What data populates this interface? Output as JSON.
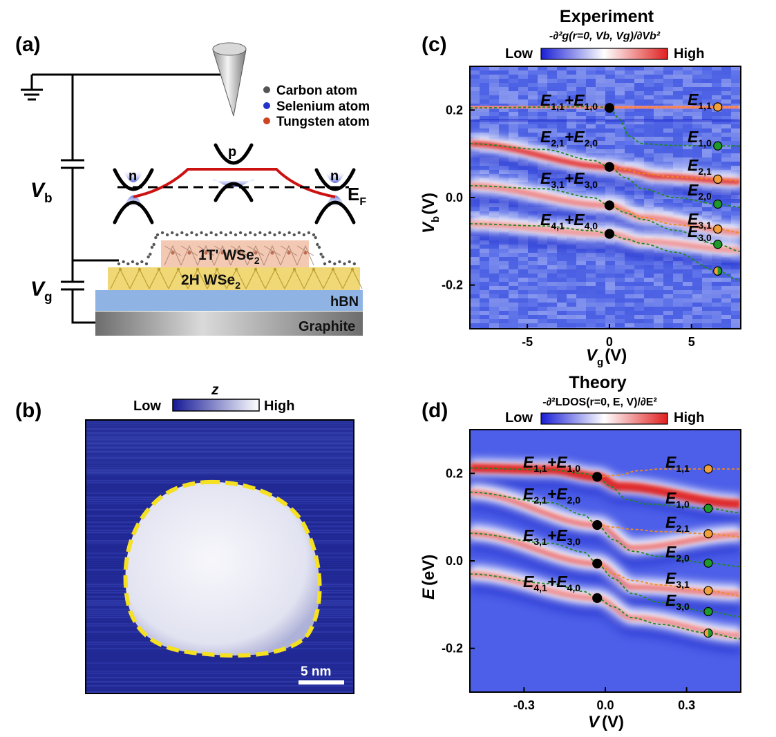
{
  "panels": {
    "a": {
      "label": "(a)"
    },
    "b": {
      "label": "(b)"
    },
    "c": {
      "label": "(c)"
    },
    "d": {
      "label": "(d)"
    }
  },
  "schematic": {
    "legend": [
      "Carbon atom",
      "Selenium atom",
      "Tungsten atom"
    ],
    "legend_colors": [
      "#555555",
      "#2233cc",
      "#cc4422"
    ],
    "vb_main": "V",
    "vb_sub": "b",
    "vg_main": "V",
    "vg_sub": "g",
    "n_left": "n",
    "p_center": "p",
    "n_right": "n",
    "ef_main": "E",
    "ef_sub": "F",
    "layer_1t_main": "1T' WSe",
    "layer_1t_sub": "2",
    "layer_2h_main": "2H WSe",
    "layer_2h_sub": "2",
    "layer_hbn": "hBN",
    "layer_graphite": "Graphite",
    "colors": {
      "band_bending": "#cc1111",
      "layer_1t": "#f3c9b3",
      "layer_2h": "#f0d877",
      "hbn": "#8fb4e3"
    }
  },
  "stm": {
    "colorbar_title": "z",
    "low": "Low",
    "high": "High",
    "scalebar": "5 nm",
    "outline_color": "#f5e021"
  },
  "experiment": {
    "title": "Experiment",
    "colorbar_title": "-∂²g(r=0, Vb, Vg)/∂Vb²",
    "low": "Low",
    "high": "High",
    "xlabel_main": "V",
    "xlabel_sub": "g",
    "xlabel_unit": "(V)",
    "ylabel_main": "V",
    "ylabel_sub": "b",
    "ylabel_unit": "(V)",
    "xticks": [
      "-5",
      "0",
      "5"
    ],
    "yticks": [
      "0.2",
      "0.0",
      "-0.2"
    ],
    "sum_labels": [
      [
        "E",
        "1,1",
        "+E",
        "1,0"
      ],
      [
        "E",
        "2,1",
        "+E",
        "2,0"
      ],
      [
        "E",
        "3,1",
        "+E",
        "3,0"
      ],
      [
        "E",
        "4,1",
        "+E",
        "4,0"
      ]
    ],
    "right_labels": [
      [
        "E",
        "1,1"
      ],
      [
        "E",
        "1,0"
      ],
      [
        "E",
        "2,1"
      ],
      [
        "E",
        "2,0"
      ],
      [
        "E",
        "3,1"
      ],
      [
        "E",
        "3,0"
      ]
    ]
  },
  "theory": {
    "title": "Theory",
    "colorbar_title": "-∂²LDOS(r=0, E, V)/∂E²",
    "low": "Low",
    "high": "High",
    "xlabel_main": "V",
    "xlabel_unit": "(V)",
    "ylabel_main": "E",
    "ylabel_unit": "(eV)",
    "xticks": [
      "-0.3",
      "0.0",
      "0.3"
    ],
    "yticks": [
      "0.2",
      "0.0",
      "-0.2"
    ],
    "sum_labels": [
      [
        "E",
        "1,1",
        "+E",
        "1,0"
      ],
      [
        "E",
        "2,1",
        "+E",
        "2,0"
      ],
      [
        "E",
        "3,1",
        "+E",
        "3,0"
      ],
      [
        "E",
        "4,1",
        "+E",
        "4,0"
      ]
    ],
    "right_labels": [
      [
        "E",
        "1,1"
      ],
      [
        "E",
        "1,0"
      ],
      [
        "E",
        "2,1"
      ],
      [
        "E",
        "2,0"
      ],
      [
        "E",
        "3,1"
      ],
      [
        "E",
        "3,0"
      ]
    ]
  },
  "chart_data": [
    {
      "type": "heatmap",
      "title": "Experiment",
      "xlabel": "Vg (V)",
      "ylabel": "Vb (V)",
      "xlim": [
        -8.5,
        8
      ],
      "ylim": [
        -0.3,
        0.3
      ],
      "xticks": [
        -5,
        0,
        5
      ],
      "yticks": [
        0.2,
        0.0,
        -0.2
      ],
      "colormap": [
        "#1a1fd6",
        "#ffffff",
        "#e02020"
      ],
      "series": [
        {
          "name": "E1,1+E1,0",
          "x": [
            0
          ],
          "y": [
            0.205
          ],
          "marker": "black"
        },
        {
          "name": "E2,1+E2,0",
          "x": [
            0
          ],
          "y": [
            0.07
          ],
          "marker": "black"
        },
        {
          "name": "E3,1+E3,0",
          "x": [
            0
          ],
          "y": [
            -0.018
          ],
          "marker": "black"
        },
        {
          "name": "E4,1+E4,0",
          "x": [
            0
          ],
          "y": [
            -0.083
          ],
          "marker": "black"
        },
        {
          "name": "E1,1",
          "x": [
            6.6
          ],
          "y": [
            0.207
          ],
          "marker": "orange"
        },
        {
          "name": "E1,0",
          "x": [
            6.6
          ],
          "y": [
            0.118
          ],
          "marker": "green"
        },
        {
          "name": "E2,1",
          "x": [
            6.6
          ],
          "y": [
            0.042
          ],
          "marker": "orange"
        },
        {
          "name": "E2,0",
          "x": [
            6.6
          ],
          "y": [
            -0.015
          ],
          "marker": "green"
        },
        {
          "name": "E3,1",
          "x": [
            6.6
          ],
          "y": [
            -0.072
          ],
          "marker": "orange"
        },
        {
          "name": "E3,0",
          "x": [
            6.6
          ],
          "y": [
            -0.107
          ],
          "marker": "green"
        },
        {
          "name": "half",
          "x": [
            6.6
          ],
          "y": [
            -0.168
          ],
          "marker": "half"
        }
      ],
      "green_curves": [
        {
          "x": [
            -8.5,
            -3,
            -1,
            0,
            0.6,
            1.2,
            2,
            4,
            6.6,
            8
          ],
          "y": [
            0.205,
            0.207,
            0.208,
            0.206,
            0.18,
            0.14,
            0.123,
            0.119,
            0.118,
            0.118
          ]
        },
        {
          "x": [
            -8.5,
            -4,
            -1,
            0,
            1,
            2,
            4,
            6.6,
            8
          ],
          "y": [
            0.123,
            0.11,
            0.085,
            0.07,
            0.045,
            0.02,
            0.0,
            -0.015,
            -0.022
          ]
        },
        {
          "x": [
            -8.5,
            -4,
            -1,
            0,
            1,
            2,
            4,
            6.6,
            8
          ],
          "y": [
            0.027,
            0.02,
            0.0,
            -0.018,
            -0.035,
            -0.05,
            -0.075,
            -0.107,
            -0.123
          ]
        },
        {
          "x": [
            -8.5,
            -4,
            -1,
            0,
            1,
            2,
            4,
            6.6,
            8
          ],
          "y": [
            -0.06,
            -0.065,
            -0.076,
            -0.083,
            -0.095,
            -0.105,
            -0.125,
            -0.168,
            -0.19
          ]
        }
      ],
      "orange_curves": [
        {
          "x": [
            0,
            2,
            4,
            6.6,
            8
          ],
          "y": [
            0.206,
            0.206,
            0.207,
            0.207,
            0.207
          ]
        },
        {
          "x": [
            0,
            1,
            2,
            4,
            6.6,
            8
          ],
          "y": [
            0.07,
            0.064,
            0.055,
            0.047,
            0.042,
            0.038
          ]
        },
        {
          "x": [
            0,
            1,
            2,
            4,
            6.6,
            8
          ],
          "y": [
            -0.018,
            -0.03,
            -0.045,
            -0.062,
            -0.072,
            -0.08
          ]
        }
      ],
      "bands": [
        {
          "x": [
            -8.5,
            -2,
            0,
            2,
            8
          ],
          "y": [
            0.207,
            0.208,
            0.206,
            0.206,
            0.205
          ],
          "intensity": 0.55
        },
        {
          "x": [
            -8.5,
            0,
            1,
            3,
            8
          ],
          "y": [
            0.123,
            0.07,
            0.062,
            0.048,
            0.036
          ],
          "intensity": 0.9
        },
        {
          "x": [
            -8.5,
            0,
            2,
            8
          ],
          "y": [
            0.027,
            -0.018,
            -0.045,
            -0.08
          ],
          "intensity": 0.4
        },
        {
          "x": [
            -8.5,
            0,
            2,
            8
          ],
          "y": [
            -0.06,
            -0.083,
            -0.1,
            -0.12
          ],
          "intensity": 0.3
        }
      ]
    },
    {
      "type": "heatmap",
      "title": "Theory",
      "xlabel": "V (V)",
      "ylabel": "E (eV)",
      "xlim": [
        -0.5,
        0.5
      ],
      "ylim": [
        -0.3,
        0.3
      ],
      "xticks": [
        -0.3,
        0.0,
        0.3
      ],
      "yticks": [
        0.2,
        0.0,
        -0.2
      ],
      "colormap": [
        "#1a1fd6",
        "#ffffff",
        "#e02020"
      ],
      "series": [
        {
          "name": "E1,1+E1,0",
          "x": [
            -0.03
          ],
          "y": [
            0.192
          ],
          "marker": "black"
        },
        {
          "name": "E2,1+E2,0",
          "x": [
            -0.03
          ],
          "y": [
            0.082
          ],
          "marker": "black"
        },
        {
          "name": "E3,1+E3,0",
          "x": [
            -0.03
          ],
          "y": [
            -0.006
          ],
          "marker": "black"
        },
        {
          "name": "E4,1+E4,0",
          "x": [
            -0.03
          ],
          "y": [
            -0.085
          ],
          "marker": "black"
        },
        {
          "name": "E1,1",
          "x": [
            0.38
          ],
          "y": [
            0.21
          ],
          "marker": "orange"
        },
        {
          "name": "E1,0",
          "x": [
            0.38
          ],
          "y": [
            0.12
          ],
          "marker": "green"
        },
        {
          "name": "E2,1",
          "x": [
            0.38
          ],
          "y": [
            0.062
          ],
          "marker": "orange"
        },
        {
          "name": "E2,0",
          "x": [
            0.38
          ],
          "y": [
            -0.005
          ],
          "marker": "green"
        },
        {
          "name": "E3,1",
          "x": [
            0.38
          ],
          "y": [
            -0.068
          ],
          "marker": "orange"
        },
        {
          "name": "E3,0",
          "x": [
            0.38
          ],
          "y": [
            -0.116
          ],
          "marker": "green"
        },
        {
          "name": "half",
          "x": [
            0.38
          ],
          "y": [
            -0.165
          ],
          "marker": "half"
        }
      ],
      "green_curves": [
        {
          "x": [
            -0.5,
            -0.2,
            -0.08,
            -0.03,
            0.02,
            0.08,
            0.15,
            0.38,
            0.5
          ],
          "y": [
            0.212,
            0.208,
            0.2,
            0.192,
            0.17,
            0.14,
            0.13,
            0.12,
            0.11
          ]
        },
        {
          "x": [
            -0.5,
            -0.2,
            -0.08,
            -0.03,
            0.03,
            0.1,
            0.2,
            0.38,
            0.5
          ],
          "y": [
            0.157,
            0.133,
            0.105,
            0.082,
            0.048,
            0.022,
            0.01,
            -0.005,
            -0.013
          ]
        },
        {
          "x": [
            -0.5,
            -0.2,
            -0.08,
            -0.03,
            0.03,
            0.1,
            0.2,
            0.38,
            0.5
          ],
          "y": [
            0.063,
            0.04,
            0.02,
            -0.006,
            -0.04,
            -0.075,
            -0.095,
            -0.116,
            -0.127
          ]
        },
        {
          "x": [
            -0.5,
            -0.2,
            -0.08,
            -0.03,
            0.03,
            0.1,
            0.2,
            0.38,
            0.5
          ],
          "y": [
            -0.03,
            -0.052,
            -0.07,
            -0.085,
            -0.105,
            -0.13,
            -0.145,
            -0.165,
            -0.178
          ]
        }
      ],
      "orange_curves": [
        {
          "x": [
            -0.03,
            0.05,
            0.12,
            0.2,
            0.38,
            0.5
          ],
          "y": [
            0.192,
            0.196,
            0.206,
            0.21,
            0.21,
            0.21
          ]
        },
        {
          "x": [
            -0.03,
            0.03,
            0.1,
            0.2,
            0.38,
            0.5
          ],
          "y": [
            0.082,
            0.077,
            0.072,
            0.067,
            0.062,
            0.055
          ]
        },
        {
          "x": [
            -0.03,
            0.03,
            0.1,
            0.2,
            0.38,
            0.5
          ],
          "y": [
            -0.006,
            -0.03,
            -0.045,
            -0.055,
            -0.068,
            -0.08
          ]
        }
      ],
      "bands": [
        {
          "x": [
            -0.5,
            -0.2,
            -0.03,
            0.05,
            0.5
          ],
          "y": [
            0.212,
            0.208,
            0.192,
            0.17,
            0.13
          ],
          "intensity": 1.0
        },
        {
          "x": [
            -0.5,
            -0.03,
            0.1,
            0.5
          ],
          "y": [
            0.157,
            0.082,
            0.03,
            0.06
          ],
          "intensity": 0.45
        },
        {
          "x": [
            -0.5,
            -0.03,
            0.1,
            0.5
          ],
          "y": [
            0.063,
            -0.006,
            -0.06,
            -0.075
          ],
          "intensity": 0.45
        },
        {
          "x": [
            -0.5,
            -0.03,
            0.1,
            0.5
          ],
          "y": [
            -0.03,
            -0.085,
            -0.13,
            -0.17
          ],
          "intensity": 0.35
        }
      ]
    }
  ]
}
